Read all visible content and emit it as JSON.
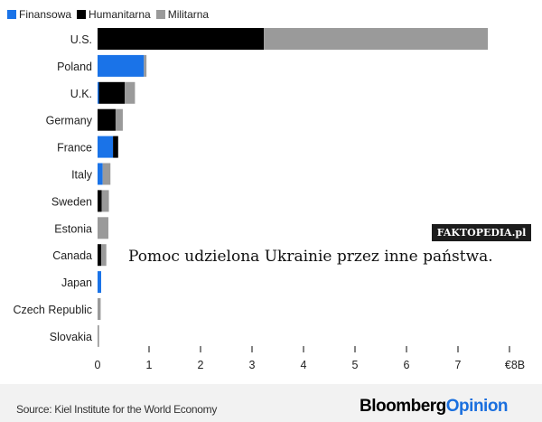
{
  "chart_data": {
    "type": "bar",
    "orientation": "horizontal",
    "stacked": true,
    "categories": [
      "U.S.",
      "Poland",
      "U.K.",
      "Germany",
      "France",
      "Italy",
      "Sweden",
      "Estonia",
      "Canada",
      "Japan",
      "Czech Republic",
      "Slovakia"
    ],
    "series": [
      {
        "name": "Finansowa",
        "color": "#1a73e8",
        "values": [
          0,
          0.9,
          0.02,
          0,
          0.3,
          0.1,
          0,
          0,
          0,
          0.07,
          0,
          0
        ]
      },
      {
        "name": "Humanitarna",
        "color": "#000000",
        "values": [
          3.23,
          0,
          0.5,
          0.35,
          0.1,
          0,
          0.08,
          0,
          0.07,
          0,
          0,
          0
        ]
      },
      {
        "name": "Militarna",
        "color": "#9a9a9a",
        "values": [
          4.35,
          0.05,
          0.2,
          0.14,
          0,
          0.15,
          0.14,
          0.21,
          0.1,
          0,
          0.06,
          0.03
        ]
      }
    ],
    "xlim": [
      0,
      8
    ],
    "xticks": [
      "0",
      "1",
      "2",
      "3",
      "4",
      "5",
      "6",
      "7",
      "€8B"
    ],
    "legend": "top-left"
  },
  "watermark": "FAKTOPEDIA.pl",
  "caption": "Pomoc udzielona Ukrainie przez inne państwa.",
  "source": "Source: Kiel Institute for the World Economy",
  "brand": {
    "part1": "Bloomberg",
    "part2": "Opinion"
  }
}
